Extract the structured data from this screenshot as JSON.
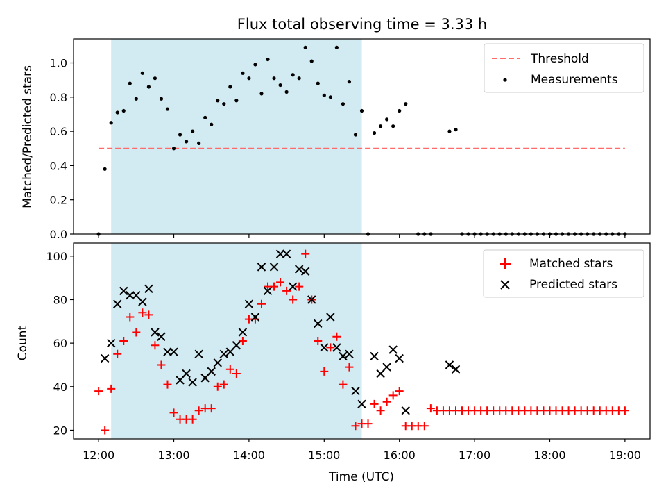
{
  "title": "Flux total observing time = 3.33 h",
  "colors": {
    "threshold": "#ff6b6b",
    "matched": "#ff0000",
    "predicted": "#000000",
    "measurement": "#000000",
    "span": "#add8e6"
  },
  "chart_data": [
    {
      "type": "scatter",
      "ylabel": "Matched/Predicted stars",
      "ylim": [
        0,
        1.14
      ],
      "yticks": [
        "0.0",
        "0.2",
        "0.4",
        "0.6",
        "0.8",
        "1.0"
      ],
      "ytick_values": [
        0,
        0.2,
        0.4,
        0.6,
        0.8,
        1.0
      ],
      "highlight_span": [
        "12:10",
        "15:30"
      ],
      "threshold": {
        "name": "Threshold",
        "y": 0.5,
        "x_range": [
          "12:00",
          "19:00"
        ],
        "style": "dashed"
      },
      "legend": [
        "Threshold",
        "Measurements"
      ],
      "legend_position": "top-right",
      "series": [
        {
          "name": "Measurements",
          "marker": "dot",
          "points": [
            [
              "12:00",
              0.0
            ],
            [
              "12:05",
              0.38
            ],
            [
              "12:10",
              0.65
            ],
            [
              "12:15",
              0.71
            ],
            [
              "12:20",
              0.72
            ],
            [
              "12:25",
              0.88
            ],
            [
              "12:30",
              0.79
            ],
            [
              "12:35",
              0.94
            ],
            [
              "12:40",
              0.86
            ],
            [
              "12:45",
              0.91
            ],
            [
              "12:50",
              0.79
            ],
            [
              "12:55",
              0.73
            ],
            [
              "13:00",
              0.5
            ],
            [
              "13:05",
              0.58
            ],
            [
              "13:10",
              0.54
            ],
            [
              "13:15",
              0.6
            ],
            [
              "13:20",
              0.53
            ],
            [
              "13:25",
              0.68
            ],
            [
              "13:30",
              0.64
            ],
            [
              "13:35",
              0.78
            ],
            [
              "13:40",
              0.76
            ],
            [
              "13:45",
              0.86
            ],
            [
              "13:50",
              0.78
            ],
            [
              "13:55",
              0.94
            ],
            [
              "14:00",
              0.91
            ],
            [
              "14:05",
              0.99
            ],
            [
              "14:10",
              0.82
            ],
            [
              "14:15",
              1.02
            ],
            [
              "14:20",
              0.91
            ],
            [
              "14:25",
              0.87
            ],
            [
              "14:30",
              0.83
            ],
            [
              "14:35",
              0.93
            ],
            [
              "14:40",
              0.91
            ],
            [
              "14:45",
              1.09
            ],
            [
              "14:50",
              1.01
            ],
            [
              "14:55",
              0.88
            ],
            [
              "15:00",
              0.81
            ],
            [
              "15:05",
              0.8
            ],
            [
              "15:10",
              1.09
            ],
            [
              "15:15",
              0.76
            ],
            [
              "15:20",
              0.89
            ],
            [
              "15:25",
              0.58
            ],
            [
              "15:30",
              0.72
            ],
            [
              "15:35",
              0.0
            ],
            [
              "15:40",
              0.59
            ],
            [
              "15:45",
              0.63
            ],
            [
              "15:50",
              0.67
            ],
            [
              "15:55",
              0.63
            ],
            [
              "16:00",
              0.72
            ],
            [
              "16:05",
              0.76
            ],
            [
              "16:15",
              0.0
            ],
            [
              "16:20",
              0.0
            ],
            [
              "16:25",
              0.0
            ],
            [
              "16:40",
              0.6
            ],
            [
              "16:45",
              0.61
            ],
            [
              "16:50",
              0.0
            ],
            [
              "16:55",
              0.0
            ],
            [
              "17:00",
              0.0
            ],
            [
              "17:05",
              0.0
            ],
            [
              "17:10",
              0.0
            ],
            [
              "17:15",
              0.0
            ],
            [
              "17:20",
              0.0
            ],
            [
              "17:25",
              0.0
            ],
            [
              "17:30",
              0.0
            ],
            [
              "17:35",
              0.0
            ],
            [
              "17:40",
              0.0
            ],
            [
              "17:45",
              0.0
            ],
            [
              "17:50",
              0.0
            ],
            [
              "17:55",
              0.0
            ],
            [
              "18:00",
              0.0
            ],
            [
              "18:05",
              0.0
            ],
            [
              "18:10",
              0.0
            ],
            [
              "18:15",
              0.0
            ],
            [
              "18:20",
              0.0
            ],
            [
              "18:25",
              0.0
            ],
            [
              "18:30",
              0.0
            ],
            [
              "18:35",
              0.0
            ],
            [
              "18:40",
              0.0
            ],
            [
              "18:45",
              0.0
            ],
            [
              "18:50",
              0.0
            ],
            [
              "18:55",
              0.0
            ],
            [
              "19:00",
              0.0
            ]
          ]
        }
      ]
    },
    {
      "type": "scatter",
      "xlabel": "Time (UTC)",
      "ylabel": "Count",
      "ylim": [
        16,
        106
      ],
      "yticks": [
        "20",
        "40",
        "60",
        "80",
        "100"
      ],
      "ytick_values": [
        20,
        40,
        60,
        80,
        100
      ],
      "xticks": [
        "12:00",
        "13:00",
        "14:00",
        "15:00",
        "16:00",
        "17:00",
        "18:00",
        "19:00"
      ],
      "xlim": [
        "11:40",
        "19:20"
      ],
      "highlight_span": [
        "12:10",
        "15:30"
      ],
      "legend": [
        "Matched stars",
        "Predicted stars"
      ],
      "legend_position": "top-right",
      "series": [
        {
          "name": "Matched stars",
          "marker": "plus",
          "points": [
            [
              "12:00",
              38
            ],
            [
              "12:05",
              20
            ],
            [
              "12:10",
              39
            ],
            [
              "12:15",
              55
            ],
            [
              "12:20",
              61
            ],
            [
              "12:25",
              72
            ],
            [
              "12:30",
              65
            ],
            [
              "12:35",
              74
            ],
            [
              "12:40",
              73
            ],
            [
              "12:45",
              59
            ],
            [
              "12:50",
              50
            ],
            [
              "12:55",
              41
            ],
            [
              "13:00",
              28
            ],
            [
              "13:05",
              25
            ],
            [
              "13:10",
              25
            ],
            [
              "13:15",
              25
            ],
            [
              "13:20",
              29
            ],
            [
              "13:25",
              30
            ],
            [
              "13:30",
              30
            ],
            [
              "13:35",
              40
            ],
            [
              "13:40",
              41
            ],
            [
              "13:45",
              48
            ],
            [
              "13:50",
              46
            ],
            [
              "13:55",
              61
            ],
            [
              "14:00",
              71
            ],
            [
              "14:05",
              71
            ],
            [
              "14:10",
              78
            ],
            [
              "14:15",
              86
            ],
            [
              "14:20",
              86
            ],
            [
              "14:25",
              88
            ],
            [
              "14:30",
              84
            ],
            [
              "14:35",
              80
            ],
            [
              "14:40",
              86
            ],
            [
              "14:45",
              101
            ],
            [
              "14:50",
              80
            ],
            [
              "14:55",
              61
            ],
            [
              "15:00",
              47
            ],
            [
              "15:05",
              58
            ],
            [
              "15:10",
              63
            ],
            [
              "15:15",
              41
            ],
            [
              "15:20",
              49
            ],
            [
              "15:25",
              22
            ],
            [
              "15:30",
              23
            ],
            [
              "15:35",
              23
            ],
            [
              "15:40",
              32
            ],
            [
              "15:45",
              29
            ],
            [
              "15:50",
              33
            ],
            [
              "15:55",
              36
            ],
            [
              "16:00",
              38
            ],
            [
              "16:05",
              22
            ],
            [
              "16:10",
              22
            ],
            [
              "16:15",
              22
            ],
            [
              "16:20",
              22
            ],
            [
              "16:25",
              30
            ],
            [
              "16:30",
              29
            ],
            [
              "16:35",
              29
            ],
            [
              "16:40",
              29
            ],
            [
              "16:45",
              29
            ],
            [
              "16:50",
              29
            ],
            [
              "16:55",
              29
            ],
            [
              "17:00",
              29
            ],
            [
              "17:05",
              29
            ],
            [
              "17:10",
              29
            ],
            [
              "17:15",
              29
            ],
            [
              "17:20",
              29
            ],
            [
              "17:25",
              29
            ],
            [
              "17:30",
              29
            ],
            [
              "17:35",
              29
            ],
            [
              "17:40",
              29
            ],
            [
              "17:45",
              29
            ],
            [
              "17:50",
              29
            ],
            [
              "17:55",
              29
            ],
            [
              "18:00",
              29
            ],
            [
              "18:05",
              29
            ],
            [
              "18:10",
              29
            ],
            [
              "18:15",
              29
            ],
            [
              "18:20",
              29
            ],
            [
              "18:25",
              29
            ],
            [
              "18:30",
              29
            ],
            [
              "18:35",
              29
            ],
            [
              "18:40",
              29
            ],
            [
              "18:45",
              29
            ],
            [
              "18:50",
              29
            ],
            [
              "18:55",
              29
            ],
            [
              "19:00",
              29
            ]
          ]
        },
        {
          "name": "Predicted stars",
          "marker": "x",
          "points": [
            [
              "12:05",
              53
            ],
            [
              "12:10",
              60
            ],
            [
              "12:15",
              78
            ],
            [
              "12:20",
              84
            ],
            [
              "12:25",
              82
            ],
            [
              "12:30",
              82
            ],
            [
              "12:35",
              79
            ],
            [
              "12:40",
              85
            ],
            [
              "12:45",
              65
            ],
            [
              "12:50",
              63
            ],
            [
              "12:55",
              56
            ],
            [
              "13:00",
              56
            ],
            [
              "13:05",
              43
            ],
            [
              "13:10",
              46
            ],
            [
              "13:15",
              42
            ],
            [
              "13:20",
              55
            ],
            [
              "13:25",
              44
            ],
            [
              "13:30",
              47
            ],
            [
              "13:35",
              51
            ],
            [
              "13:40",
              55
            ],
            [
              "13:45",
              56
            ],
            [
              "13:50",
              59
            ],
            [
              "13:55",
              65
            ],
            [
              "14:00",
              78
            ],
            [
              "14:05",
              72
            ],
            [
              "14:10",
              95
            ],
            [
              "14:15",
              84
            ],
            [
              "14:20",
              95
            ],
            [
              "14:25",
              101
            ],
            [
              "14:30",
              101
            ],
            [
              "14:35",
              86
            ],
            [
              "14:40",
              94
            ],
            [
              "14:45",
              93
            ],
            [
              "14:50",
              80
            ],
            [
              "14:55",
              69
            ],
            [
              "15:00",
              58
            ],
            [
              "15:05",
              72
            ],
            [
              "15:10",
              58
            ],
            [
              "15:15",
              54
            ],
            [
              "15:20",
              55
            ],
            [
              "15:25",
              38
            ],
            [
              "15:30",
              32
            ],
            [
              "15:40",
              54
            ],
            [
              "15:45",
              46
            ],
            [
              "15:50",
              49
            ],
            [
              "15:55",
              57
            ],
            [
              "16:00",
              53
            ],
            [
              "16:05",
              29
            ],
            [
              "16:40",
              50
            ],
            [
              "16:45",
              48
            ]
          ]
        }
      ]
    }
  ]
}
